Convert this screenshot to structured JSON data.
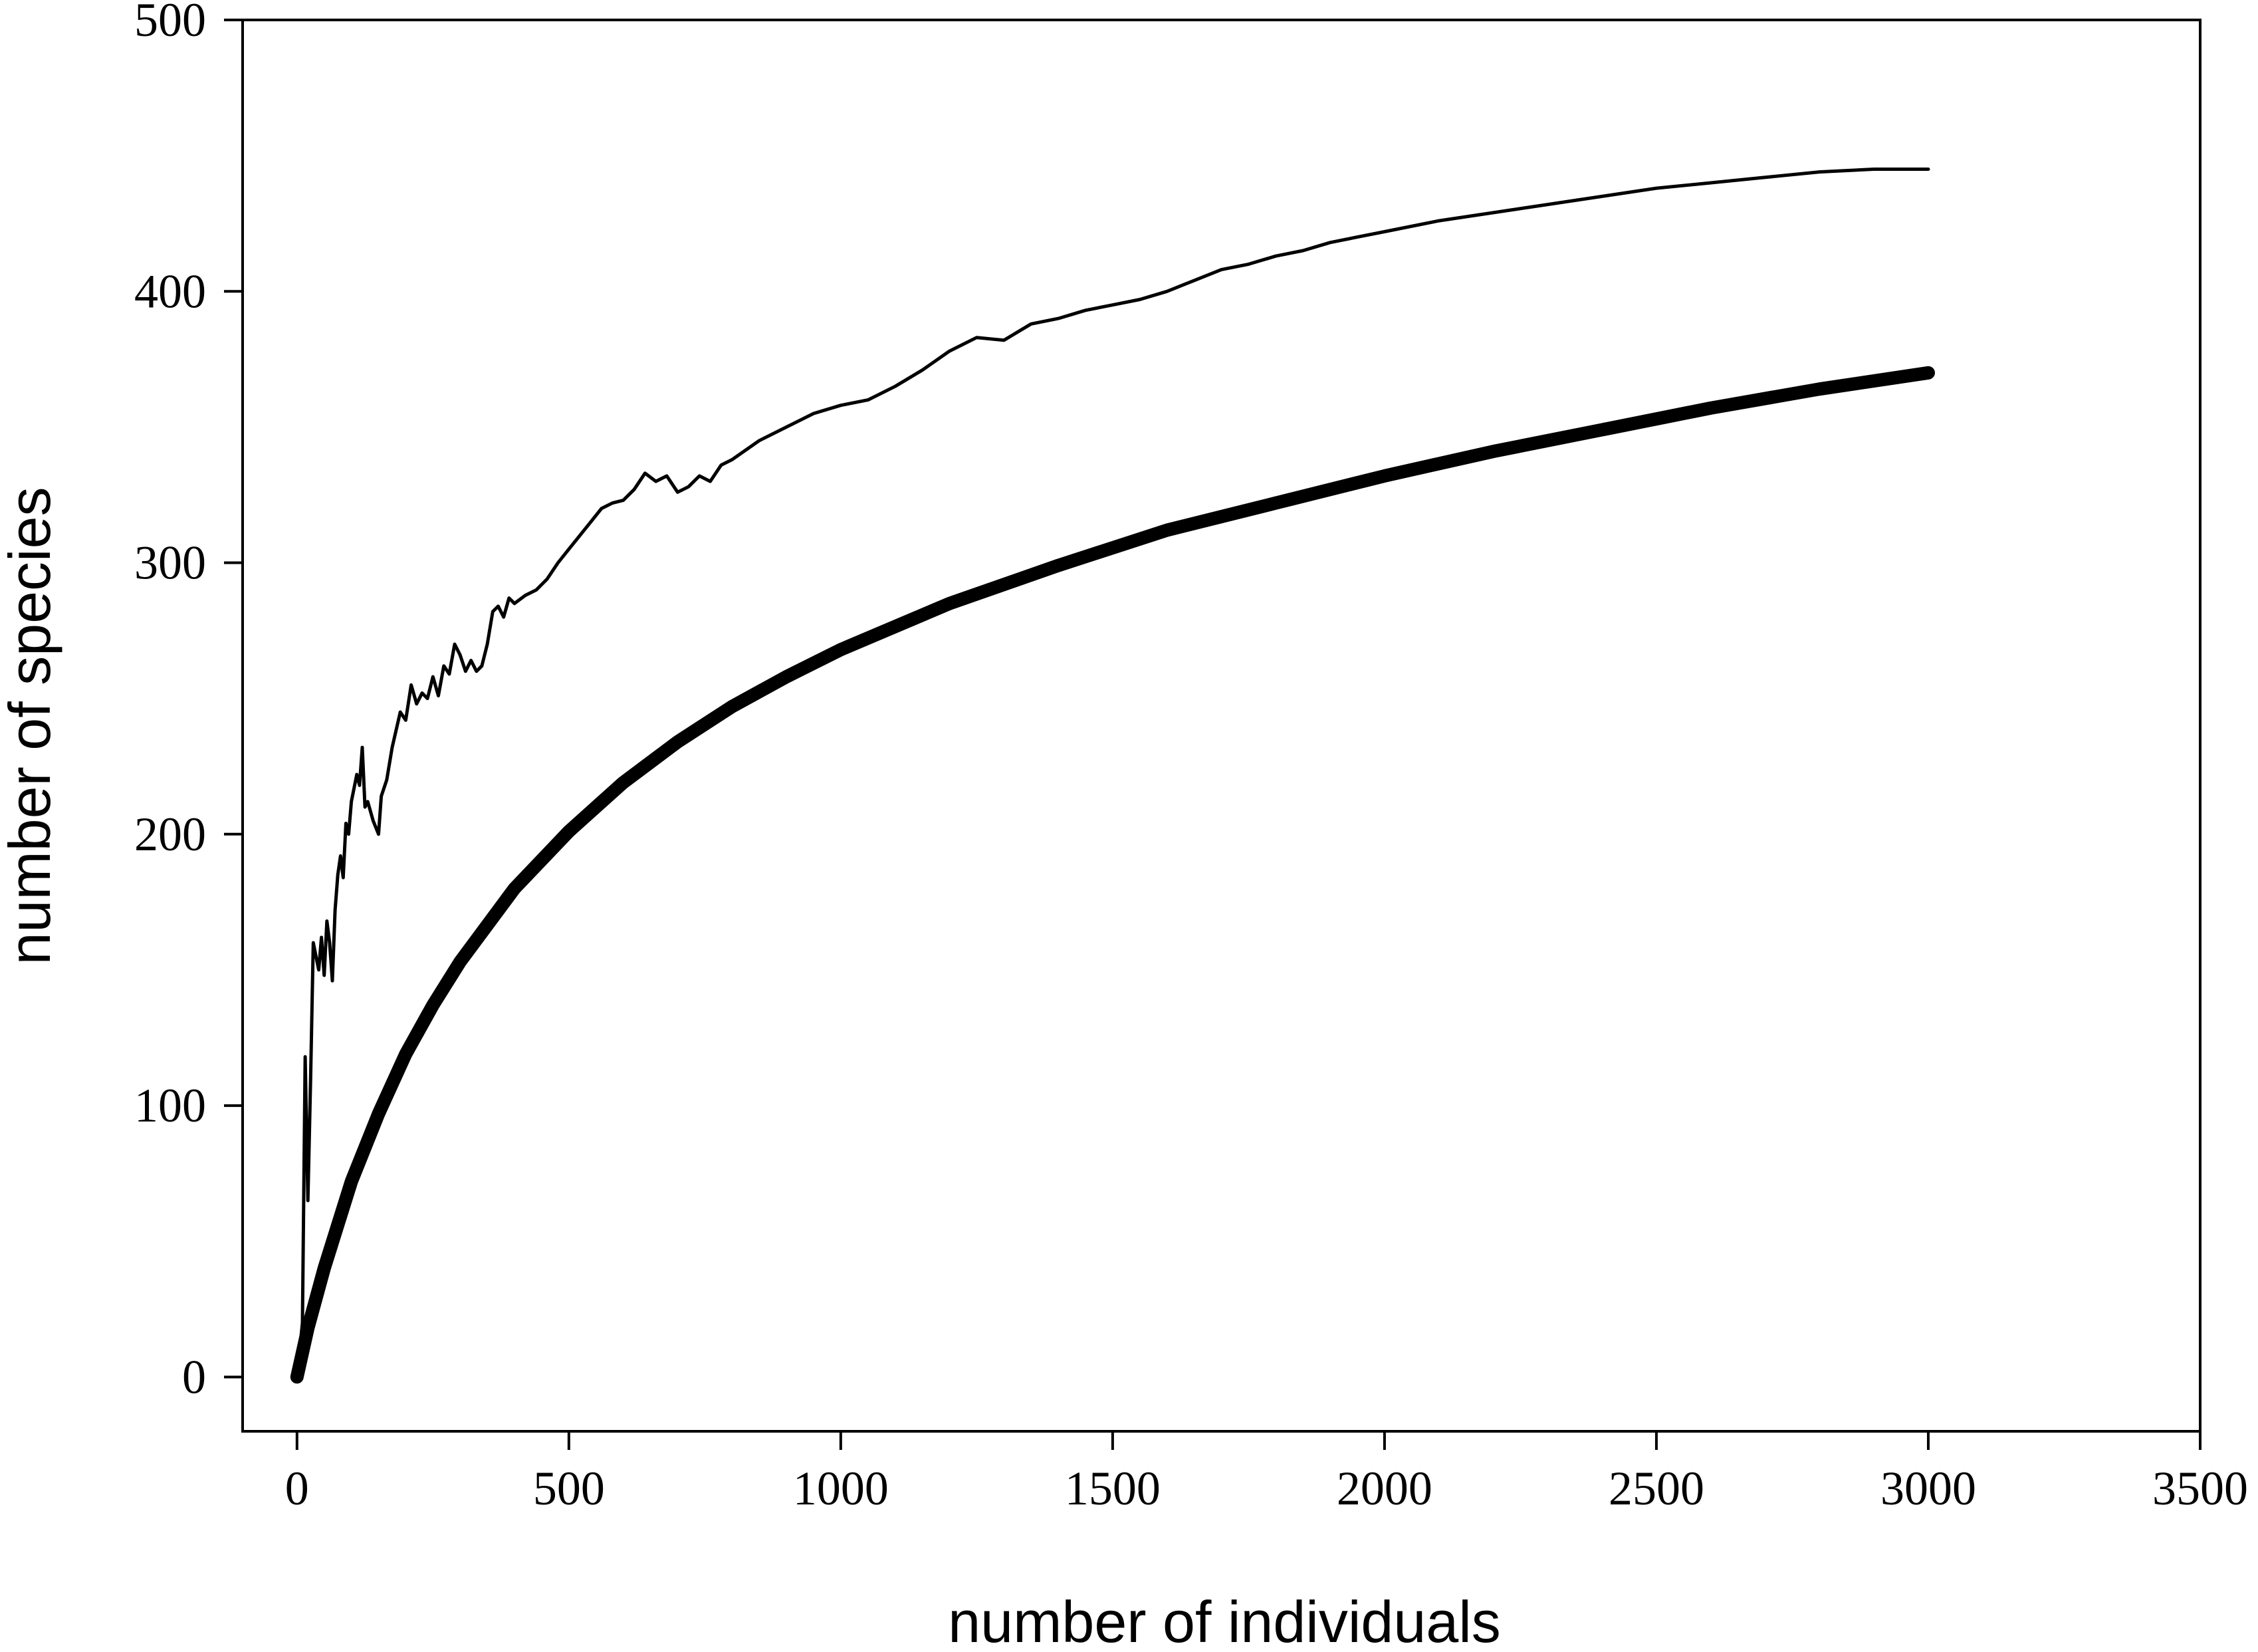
{
  "chart_data": {
    "type": "line",
    "title": "",
    "xlabel": "number of individuals",
    "ylabel": "number of species",
    "xlim": [
      -100,
      3500
    ],
    "ylim": [
      -20,
      500
    ],
    "xticks": [
      0,
      500,
      1000,
      1500,
      2000,
      2500,
      3000,
      3500
    ],
    "yticks": [
      0,
      100,
      200,
      300,
      400,
      500
    ],
    "grid": false,
    "legend": "none",
    "colors": {
      "line": "#000000",
      "axis": "#000000",
      "background": "#ffffff"
    },
    "series": [
      {
        "style": "thin",
        "x": [
          0,
          10,
          15,
          20,
          25,
          30,
          40,
          45,
          50,
          55,
          60,
          65,
          70,
          75,
          80,
          85,
          90,
          95,
          100,
          110,
          115,
          120,
          125,
          130,
          140,
          150,
          155,
          165,
          175,
          190,
          200,
          210,
          220,
          230,
          240,
          250,
          260,
          270,
          280,
          290,
          300,
          310,
          320,
          330,
          340,
          350,
          360,
          370,
          380,
          390,
          400,
          420,
          440,
          460,
          480,
          500,
          520,
          540,
          560,
          580,
          600,
          620,
          640,
          660,
          680,
          700,
          720,
          740,
          760,
          780,
          800,
          850,
          900,
          950,
          1000,
          1050,
          1100,
          1150,
          1200,
          1250,
          1300,
          1350,
          1400,
          1450,
          1500,
          1550,
          1600,
          1650,
          1700,
          1750,
          1800,
          1850,
          1900,
          1950,
          2000,
          2100,
          2200,
          2300,
          2400,
          2500,
          2600,
          2700,
          2800,
          2900,
          3000
        ],
        "y": [
          0,
          20,
          118,
          65,
          110,
          160,
          150,
          162,
          148,
          168,
          160,
          146,
          172,
          185,
          192,
          184,
          204,
          200,
          212,
          222,
          218,
          232,
          210,
          212,
          205,
          200,
          214,
          220,
          232,
          245,
          242,
          255,
          248,
          252,
          250,
          258,
          251,
          262,
          259,
          270,
          266,
          260,
          264,
          260,
          262,
          270,
          282,
          284,
          280,
          287,
          285,
          288,
          290,
          294,
          300,
          305,
          310,
          315,
          320,
          322,
          323,
          327,
          333,
          330,
          332,
          326,
          328,
          332,
          330,
          336,
          338,
          345,
          350,
          355,
          358,
          360,
          365,
          371,
          378,
          383,
          382,
          388,
          390,
          393,
          395,
          397,
          400,
          404,
          408,
          410,
          413,
          415,
          418,
          420,
          422,
          426,
          429,
          432,
          435,
          438,
          440,
          442,
          444,
          445,
          445
        ]
      },
      {
        "style": "thick",
        "x": [
          0,
          20,
          50,
          100,
          150,
          200,
          250,
          300,
          400,
          500,
          600,
          700,
          800,
          900,
          1000,
          1200,
          1400,
          1600,
          1800,
          2000,
          2200,
          2400,
          2600,
          2800,
          3000
        ],
        "y": [
          0,
          18,
          40,
          72,
          97,
          119,
          137,
          153,
          180,
          201,
          219,
          234,
          247,
          258,
          268,
          285,
          299,
          312,
          322,
          332,
          341,
          349,
          357,
          364,
          370
        ]
      }
    ]
  }
}
